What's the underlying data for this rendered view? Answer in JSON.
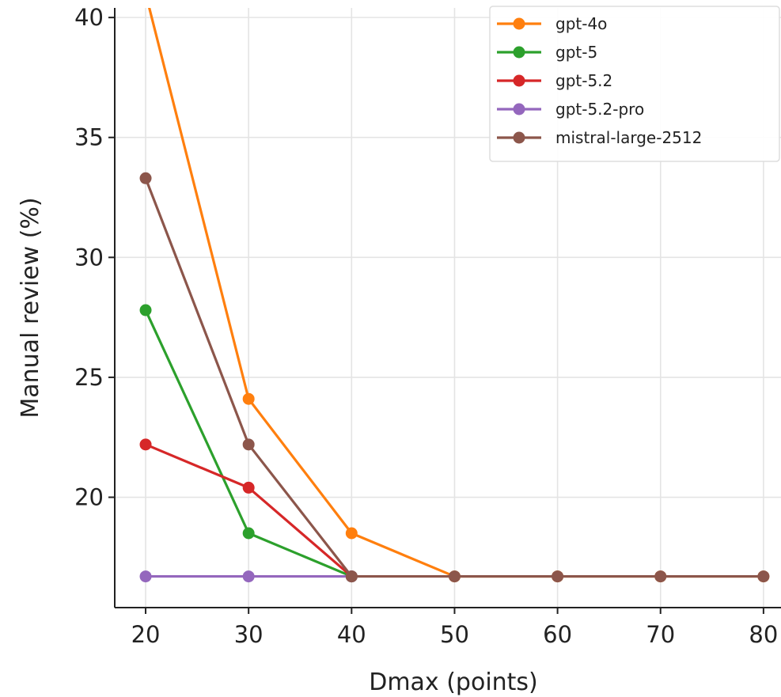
{
  "chart_data": {
    "type": "line",
    "title": "",
    "xlabel": "Dmax (points)",
    "ylabel": "Manual review (%)",
    "x": [
      20,
      30,
      40,
      50,
      60,
      70,
      80
    ],
    "xticks": [
      "20",
      "30",
      "40",
      "50",
      "60",
      "70",
      "80"
    ],
    "yticks": [
      "20",
      "25",
      "30",
      "35",
      "40"
    ],
    "xlim": [
      17,
      81.7
    ],
    "ylim": [
      15.4,
      40.4
    ],
    "grid": true,
    "legend_position": "top-right",
    "series": [
      {
        "name": "gpt-4o",
        "color": "#ff7f0e",
        "values": [
          41.0,
          24.1,
          18.5,
          16.7,
          16.7,
          16.7,
          16.7
        ]
      },
      {
        "name": "gpt-5",
        "color": "#2ca02c",
        "values": [
          27.8,
          18.5,
          16.7,
          null,
          null,
          null,
          null
        ]
      },
      {
        "name": "gpt-5.2",
        "color": "#d62728",
        "values": [
          22.2,
          20.4,
          16.7,
          null,
          null,
          null,
          null
        ]
      },
      {
        "name": "gpt-5.2-pro",
        "color": "#9467bd",
        "values": [
          16.7,
          16.7,
          16.7,
          null,
          null,
          null,
          null
        ]
      },
      {
        "name": "mistral-large-2512",
        "color": "#8c564b",
        "values": [
          33.3,
          22.2,
          16.7,
          16.7,
          16.7,
          16.7,
          16.7
        ]
      }
    ]
  }
}
